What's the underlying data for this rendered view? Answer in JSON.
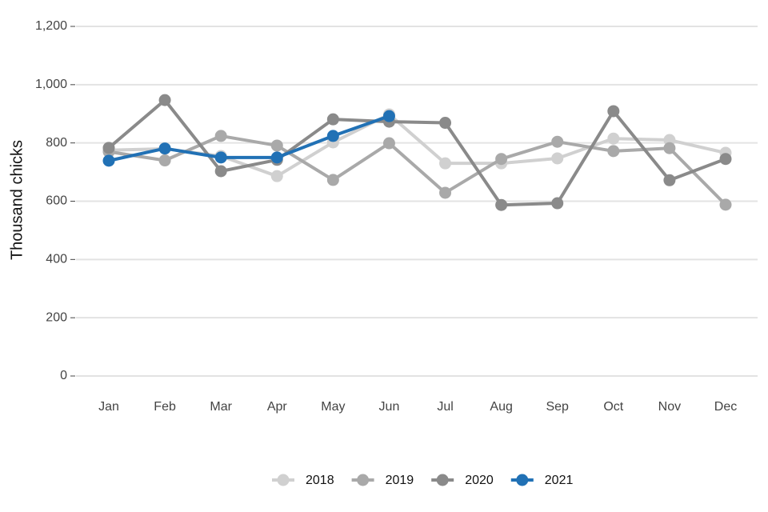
{
  "chart_data": {
    "type": "line",
    "y_label": "Thousand chicks",
    "categories": [
      "Jan",
      "Feb",
      "Mar",
      "Apr",
      "May",
      "Jun",
      "Jul",
      "Aug",
      "Sep",
      "Oct",
      "Nov",
      "Dec"
    ],
    "series": [
      {
        "name": "2018",
        "color": "#d0d0d0",
        "values": [
          775,
          780,
          755,
          686,
          802,
          898,
          730,
          730,
          747,
          815,
          810,
          766
        ]
      },
      {
        "name": "2019",
        "color": "#a9a9a9",
        "values": [
          770,
          740,
          824,
          791,
          673,
          799,
          629,
          745,
          804,
          772,
          782,
          588
        ]
      },
      {
        "name": "2020",
        "color": "#8a8a8a",
        "values": [
          783,
          947,
          703,
          742,
          881,
          873,
          869,
          587,
          593,
          909,
          672,
          745
        ]
      },
      {
        "name": "2021",
        "color": "#2171b5",
        "values": [
          739,
          781,
          750,
          750,
          824,
          892,
          null,
          null,
          null,
          null,
          null,
          null
        ]
      }
    ],
    "ylim": [
      0,
      1200
    ],
    "yticks": [
      0,
      200,
      400,
      600,
      800,
      {
        "value": 1000,
        "label": "1,000"
      },
      {
        "value": 1200,
        "label": "1,200"
      }
    ],
    "grid": true,
    "legend": "bottom"
  }
}
